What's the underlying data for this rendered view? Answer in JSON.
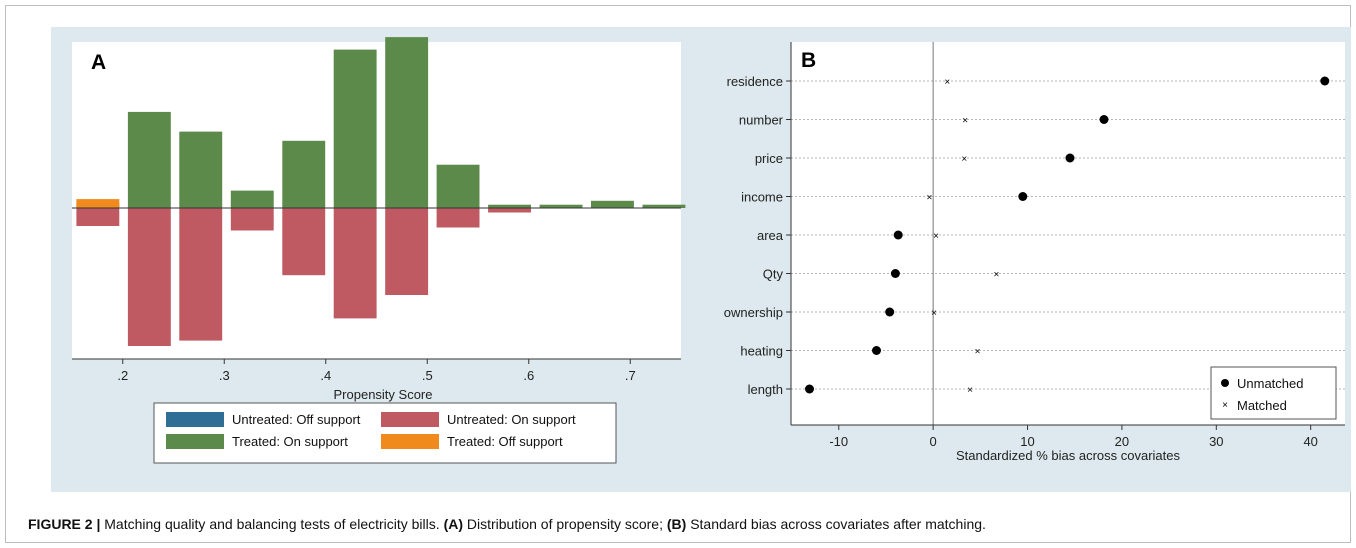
{
  "caption": {
    "label": "FIGURE 2 |",
    "text": "Matching quality and balancing tests of electricity bills.",
    "a_label": "(A)",
    "a_text": "Distribution of propensity score;",
    "b_label": "(B)",
    "b_text": "Standard bias across covariates after matching."
  },
  "colors": {
    "panel_bg": "#dde9ee",
    "treated_on": "#5c8a4a",
    "untreated_on": "#bf5a62",
    "untreated_off": "#2f6f96",
    "treated_off": "#f08a1c"
  },
  "chart_data": [
    {
      "type": "bar",
      "panel_label": "A",
      "xlabel": "Propensity Score",
      "xlim": [
        0.15,
        0.75
      ],
      "ylim": [
        -0.46,
        0.5
      ],
      "xticks": [
        0.2,
        0.3,
        0.4,
        0.5,
        0.6,
        0.7
      ],
      "xtick_labels": [
        ".2",
        ".3",
        ".4",
        ".5",
        ".6",
        ".7"
      ],
      "bin_width": 0.0423,
      "series": [
        {
          "name": "Treated: On support",
          "color": "#5c8a4a",
          "x": [
            0.1755,
            0.2262,
            0.2769,
            0.3276,
            0.3783,
            0.429,
            0.4797,
            0.5304,
            0.5811,
            0.6318,
            0.6825,
            0.7332
          ],
          "values": [
            0.015,
            0.293,
            0.233,
            0.053,
            0.205,
            0.483,
            0.521,
            0.132,
            0.01,
            0.01,
            0.022,
            0.01
          ]
        },
        {
          "name": "Untreated: On support",
          "color": "#bf5a62",
          "x": [
            0.1755,
            0.2262,
            0.2769,
            0.3276,
            0.3783,
            0.429,
            0.4797,
            0.5304,
            0.5811
          ],
          "values": [
            -0.06,
            -0.46,
            -0.442,
            -0.075,
            -0.224,
            -0.368,
            -0.29,
            -0.065,
            -0.015
          ]
        },
        {
          "name": "Treated: Off support",
          "color": "#f08a1c",
          "x": [
            0.1755
          ],
          "values": [
            0.027
          ]
        }
      ],
      "legend": {
        "placement": "bottom",
        "entries": [
          {
            "name": "Untreated: Off support",
            "color": "#2f6f96"
          },
          {
            "name": "Untreated: On support",
            "color": "#bf5a62"
          },
          {
            "name": "Treated: On support",
            "color": "#5c8a4a"
          },
          {
            "name": "Treated: Off support",
            "color": "#f08a1c"
          }
        ]
      }
    },
    {
      "type": "scatter",
      "panel_label": "B",
      "xlabel": "Standardized % bias across covariates",
      "xlim": [
        -14,
        43
      ],
      "xticks": [
        -10,
        0,
        10,
        20,
        30,
        40
      ],
      "xtick_labels": [
        "-10",
        "0",
        "10",
        "20",
        "30",
        "40"
      ],
      "categories": [
        "residence",
        "number",
        "price",
        "income",
        "area",
        "Qty",
        "ownership",
        "heating",
        "length"
      ],
      "series": [
        {
          "name": "Unmatched",
          "marker": "dot",
          "values": [
            41.5,
            18.1,
            14.5,
            9.5,
            -3.7,
            -4.0,
            -4.6,
            -6.0,
            -13.1
          ]
        },
        {
          "name": "Matched",
          "marker": "x",
          "values": [
            1.5,
            3.4,
            3.3,
            -0.4,
            0.3,
            6.7,
            0.1,
            4.7,
            3.9
          ]
        }
      ],
      "grid": true,
      "reference_line": 0,
      "legend": {
        "placement": "bottom-right"
      }
    }
  ]
}
